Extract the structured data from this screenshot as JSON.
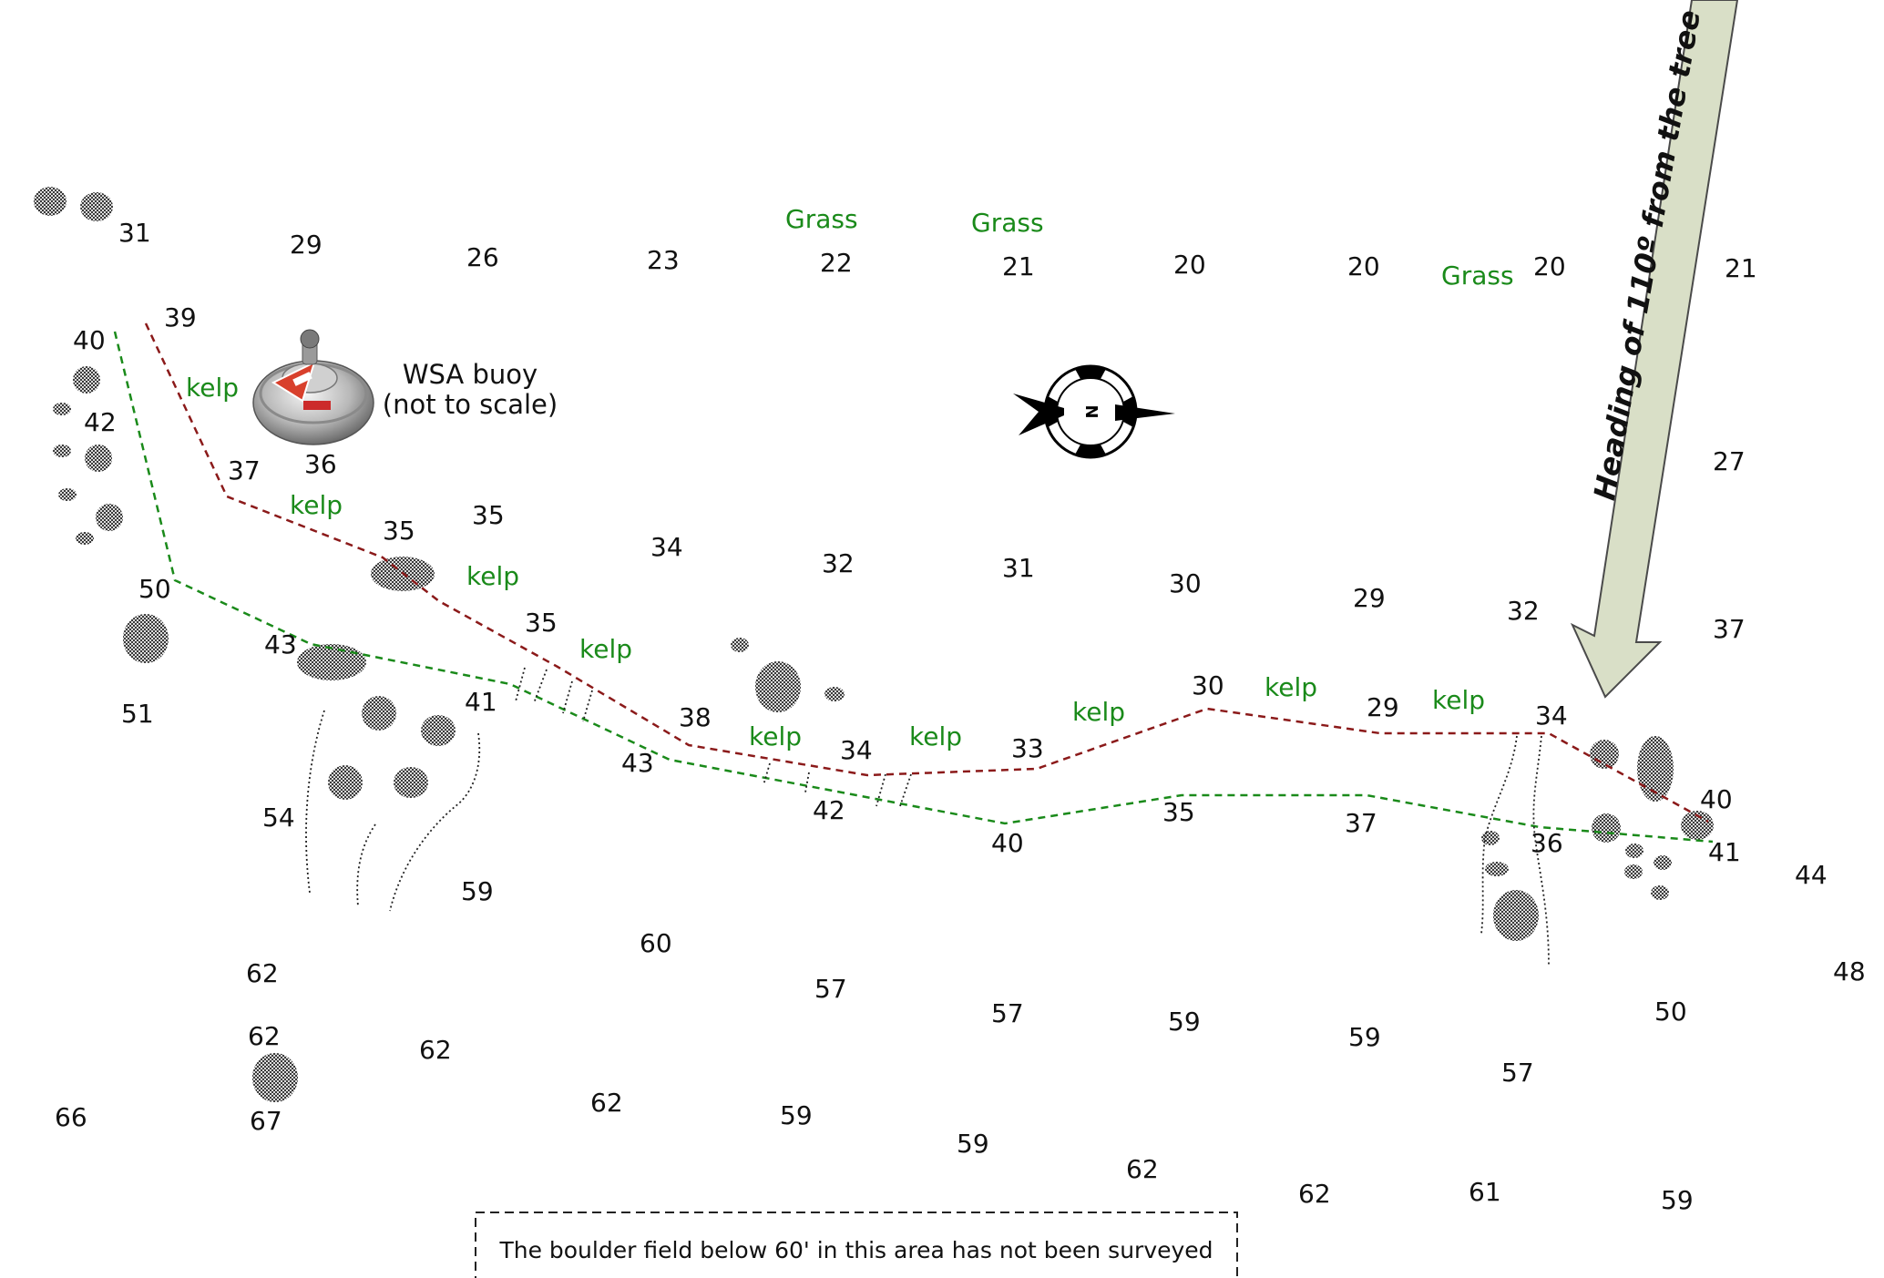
{
  "colors": {
    "depth_text": "#111111",
    "vegetation_text": "#1a8a1a",
    "shallow_contour": "#8b1a1a",
    "deep_contour": "#1a8a1a",
    "boulder": "#6f6f6f",
    "heading_arrow_fill": "#d9dfc7",
    "heading_arrow_stroke": "#4a4a4a"
  },
  "depths": [
    "31",
    "29",
    "26",
    "23",
    "22",
    "21",
    "20",
    "20",
    "20",
    "21",
    "39",
    "40",
    "42",
    "37",
    "36",
    "35",
    "35",
    "34",
    "32",
    "31",
    "30",
    "29",
    "32",
    "27",
    "37",
    "50",
    "43",
    "35",
    "51",
    "41",
    "38",
    "34",
    "33",
    "30",
    "29",
    "34",
    "40",
    "43",
    "42",
    "40",
    "35",
    "37",
    "36",
    "41",
    "44",
    "54",
    "59",
    "60",
    "62",
    "57",
    "57",
    "59",
    "59",
    "50",
    "48",
    "62",
    "62",
    "66",
    "67",
    "62",
    "59",
    "59",
    "62",
    "62",
    "61",
    "59",
    "57"
  ],
  "vegetation_labels": [
    "Grass",
    "Grass",
    "Grass",
    "kelp",
    "kelp",
    "kelp",
    "kelp",
    "kelp",
    "kelp",
    "kelp",
    "kelp",
    "kelp"
  ],
  "buoy": {
    "label_line1": "WSA buoy",
    "label_line2": "(not to scale)",
    "icon": "dive-buoy-icon"
  },
  "compass": {
    "letter": "N",
    "icon": "north-arrow-icon"
  },
  "heading": {
    "text": "Heading of 110º from the tree",
    "icon": "heading-arrow-icon"
  },
  "note": {
    "text": "The boulder field below 60' in this area has not been surveyed"
  }
}
